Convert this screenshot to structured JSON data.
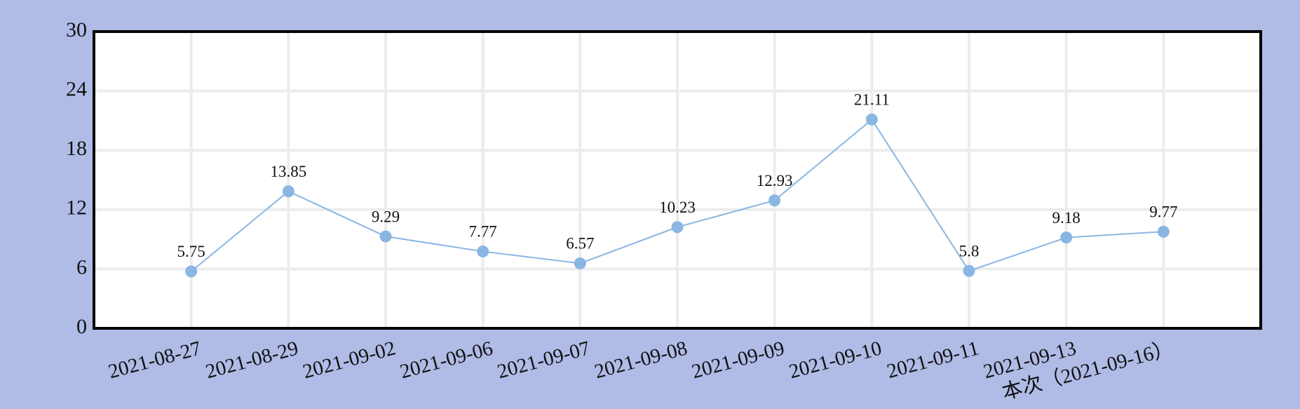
{
  "chart_data": {
    "type": "line",
    "categories": [
      "2021-08-27",
      "2021-08-29",
      "2021-09-02",
      "2021-09-06",
      "2021-09-07",
      "2021-09-08",
      "2021-09-09",
      "2021-09-10",
      "2021-09-11",
      "2021-09-13",
      "本次（2021-09-16）"
    ],
    "series": [
      {
        "color": "#8ab6e3",
        "values": [
          5.75,
          13.85,
          9.29,
          7.77,
          6.57,
          10.23,
          12.93,
          21.11,
          5.8,
          9.18,
          9.77
        ]
      }
    ],
    "ylim": [
      0,
      30
    ],
    "yticks": [
      0,
      6,
      12,
      18,
      24,
      30
    ],
    "grid": true
  }
}
